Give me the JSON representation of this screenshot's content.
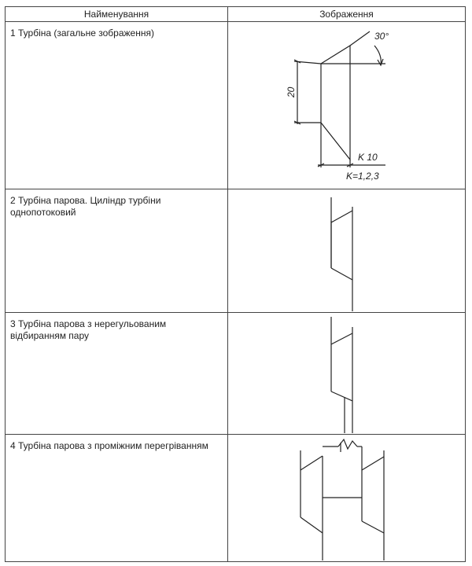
{
  "table": {
    "headers": {
      "name": "Найменування",
      "image": "Зображення"
    },
    "rows": [
      {
        "name": "1 Турбіна (загальне зображення)"
      },
      {
        "name": "2 Турбіна парова. Циліндр турбіни однопотоковий"
      },
      {
        "name": "3 Турбіна парова з нерегульованим відбиранням пару"
      },
      {
        "name": "4 Турбіна парова з проміжним перегріванням"
      }
    ]
  },
  "drawing1": {
    "angle_label": "30°",
    "height_label": "20",
    "k_label": "K 10",
    "k_values_label": "K=1,2,3"
  }
}
